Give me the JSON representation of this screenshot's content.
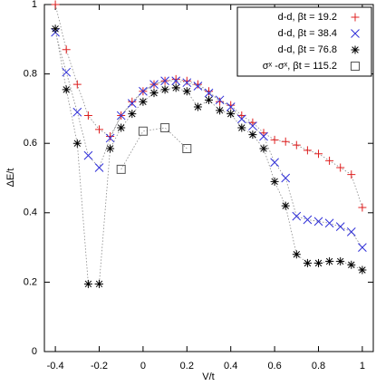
{
  "chart_data": {
    "type": "scatter",
    "x_label": "V/t",
    "y_label": "ΔE/t",
    "xlim": [
      -0.45,
      1.05
    ],
    "ylim": [
      0,
      1
    ],
    "xticks": [
      -0.4,
      -0.2,
      0,
      0.2,
      0.4,
      0.6,
      0.8,
      1
    ],
    "yticks": [
      0,
      0.2,
      0.4,
      0.6,
      0.8,
      1
    ],
    "legend": "upper-right",
    "connect": true,
    "series": [
      {
        "name": "d-d, βt = 19.2",
        "color": "#e02020",
        "marker": "plus",
        "x": [
          -0.4,
          -0.35,
          -0.3,
          -0.25,
          -0.2,
          -0.15,
          -0.1,
          -0.05,
          0,
          0.05,
          0.1,
          0.15,
          0.2,
          0.25,
          0.3,
          0.35,
          0.4,
          0.45,
          0.5,
          0.55,
          0.6,
          0.65,
          0.7,
          0.75,
          0.8,
          0.85,
          0.9,
          0.95,
          1
        ],
        "values": [
          1.0,
          0.87,
          0.77,
          0.68,
          0.64,
          0.62,
          0.68,
          0.72,
          0.75,
          0.77,
          0.78,
          0.785,
          0.78,
          0.77,
          0.75,
          0.72,
          0.71,
          0.68,
          0.66,
          0.63,
          0.61,
          0.605,
          0.595,
          0.58,
          0.57,
          0.55,
          0.53,
          0.51,
          0.415
        ]
      },
      {
        "name": "d-d, βt = 38.4",
        "color": "#3030d8",
        "marker": "cross",
        "x": [
          -0.4,
          -0.35,
          -0.3,
          -0.25,
          -0.2,
          -0.15,
          -0.1,
          -0.05,
          0,
          0.05,
          0.1,
          0.15,
          0.2,
          0.25,
          0.3,
          0.35,
          0.4,
          0.45,
          0.5,
          0.55,
          0.6,
          0.65,
          0.7,
          0.75,
          0.8,
          0.85,
          0.9,
          0.95,
          1
        ],
        "values": [
          0.92,
          0.805,
          0.69,
          0.565,
          0.53,
          0.615,
          0.68,
          0.715,
          0.75,
          0.77,
          0.78,
          0.78,
          0.775,
          0.765,
          0.745,
          0.725,
          0.705,
          0.67,
          0.65,
          0.62,
          0.545,
          0.5,
          0.39,
          0.38,
          0.375,
          0.37,
          0.36,
          0.345,
          0.3
        ]
      },
      {
        "name": "d-d, βt = 76.8",
        "color": "#000000",
        "marker": "star",
        "x": [
          -0.4,
          -0.35,
          -0.3,
          -0.25,
          -0.2,
          -0.15,
          -0.1,
          -0.05,
          0,
          0.05,
          0.1,
          0.15,
          0.2,
          0.25,
          0.3,
          0.35,
          0.4,
          0.45,
          0.5,
          0.55,
          0.6,
          0.65,
          0.7,
          0.75,
          0.8,
          0.85,
          0.9,
          0.95,
          1
        ],
        "values": [
          0.93,
          0.755,
          0.6,
          0.195,
          0.195,
          0.585,
          0.645,
          0.685,
          0.72,
          0.745,
          0.755,
          0.76,
          0.75,
          0.705,
          0.725,
          0.695,
          0.685,
          0.645,
          0.625,
          0.585,
          0.49,
          0.42,
          0.28,
          0.255,
          0.255,
          0.26,
          0.26,
          0.25,
          0.235
        ]
      },
      {
        "name": "σˣ -σˣ, βt = 115.2",
        "color": "#555555",
        "marker": "square",
        "x": [
          -0.1,
          0,
          0.1,
          0.2
        ],
        "values": [
          0.525,
          0.635,
          0.645,
          0.585
        ]
      }
    ]
  }
}
